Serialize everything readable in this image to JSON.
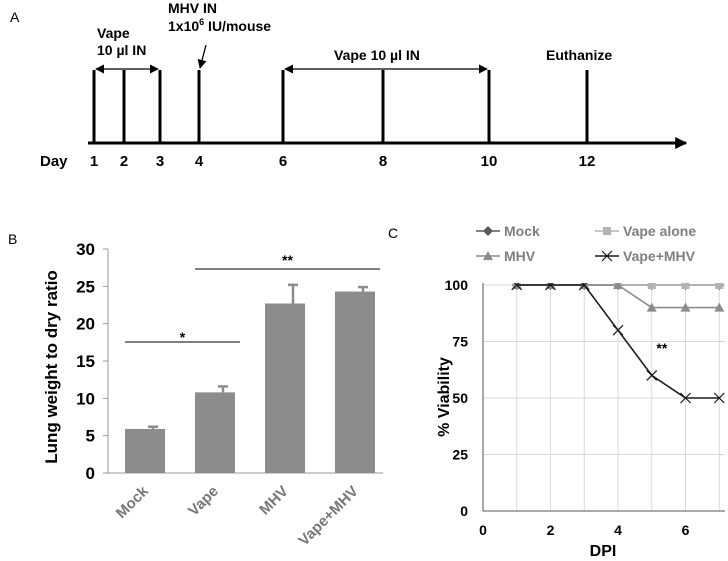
{
  "panels": {
    "a": {
      "label": "A",
      "day_label": "Day",
      "days": [
        "1",
        "2",
        "3",
        "4",
        "6",
        "8",
        "10",
        "12"
      ],
      "vape_label_1": "Vape",
      "vape_label_2": "10 µl IN",
      "mhv_label_1": "MHV IN",
      "mhv_label_2a": "1x10",
      "mhv_label_2_sup": "6",
      "mhv_label_2b": " IU/mouse",
      "vape_label_3": "Vape 10 µl IN",
      "euthanize_label": "Euthanize"
    },
    "b": {
      "label": "B"
    },
    "c": {
      "label": "C"
    }
  },
  "chart_data": [
    {
      "type": "bar",
      "title": "",
      "xlabel": "",
      "ylabel": "Lung weight to dry ratio",
      "categories": [
        "Mock",
        "Vape",
        "MHV",
        "Vape+MHV"
      ],
      "values": [
        5.9,
        10.8,
        22.7,
        24.3
      ],
      "errors": [
        0.3,
        0.8,
        2.5,
        0.6
      ],
      "ylim": [
        0,
        30
      ],
      "yticks": [
        "0",
        "5",
        "10",
        "15",
        "20",
        "25",
        "30"
      ],
      "bar_color": "#8c8c8c",
      "annotations": [
        {
          "text": "*",
          "from": "Mock",
          "to": "Vape"
        },
        {
          "text": "**",
          "from": "Vape",
          "to": "Vape+MHV"
        }
      ]
    },
    {
      "type": "line",
      "title": "",
      "xlabel": "DPI",
      "ylabel": "% Viability",
      "xlim": [
        0,
        7
      ],
      "ylim": [
        0,
        100
      ],
      "xticks": [
        "0",
        "2",
        "4",
        "6"
      ],
      "yticks": [
        "0",
        "25",
        "50",
        "75",
        "100"
      ],
      "grid": true,
      "x": [
        1,
        2,
        3,
        4,
        5,
        6,
        7
      ],
      "series": [
        {
          "name": "Mock",
          "values": [
            100,
            100,
            100,
            100,
            100,
            100,
            100
          ],
          "color": "#595959",
          "marker": "diamond"
        },
        {
          "name": "Vape alone",
          "values": [
            100,
            100,
            100,
            100,
            100,
            100,
            100
          ],
          "color": "#b3b3b3",
          "marker": "square"
        },
        {
          "name": "MHV",
          "values": [
            100,
            100,
            100,
            100,
            90,
            90,
            90
          ],
          "color": "#8c8c8c",
          "marker": "triangle"
        },
        {
          "name": "Vape+MHV",
          "values": [
            100,
            100,
            100,
            80,
            60,
            50,
            50
          ],
          "color": "#1a1a1a",
          "marker": "x"
        }
      ],
      "annotations": [
        {
          "text": "**",
          "x": 5.3,
          "y": 70
        }
      ]
    }
  ]
}
